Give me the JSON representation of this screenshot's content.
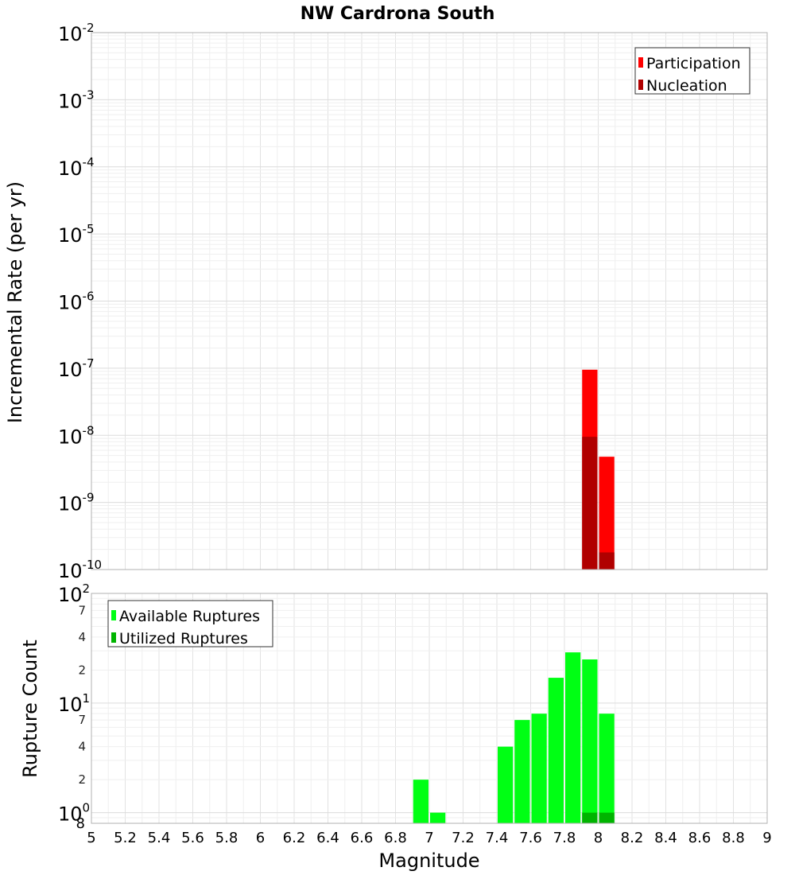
{
  "chart_data": [
    {
      "type": "bar",
      "title": "NW Cardrona South",
      "xlabel": "",
      "ylabel": "Incremental Rate (per yr)",
      "yscale": "log",
      "xlim": [
        5,
        9
      ],
      "ylim": [
        1e-10,
        0.01
      ],
      "y_ticks": [
        {
          "base": "10",
          "exp": "-2"
        },
        {
          "base": "10",
          "exp": "-3"
        },
        {
          "base": "10",
          "exp": "-4"
        },
        {
          "base": "10",
          "exp": "-5"
        },
        {
          "base": "10",
          "exp": "-6"
        },
        {
          "base": "10",
          "exp": "-7"
        },
        {
          "base": "10",
          "exp": "-8"
        },
        {
          "base": "10",
          "exp": "-9"
        },
        {
          "base": "10",
          "exp": "-10"
        }
      ],
      "bin_width": 0.1,
      "legend": {
        "placement": "top-right",
        "entries": [
          {
            "name": "Participation",
            "color": "#ff0000"
          },
          {
            "name": "Nucleation",
            "color": "#b00000"
          }
        ]
      },
      "series": [
        {
          "name": "Participation",
          "color": "#ff0000",
          "x": [
            7.95,
            8.05
          ],
          "values": [
            9.5e-08,
            4.8e-09
          ]
        },
        {
          "name": "Nucleation",
          "color": "#b00000",
          "x": [
            7.95,
            8.05
          ],
          "values": [
            9.5e-09,
            1.8e-10
          ]
        }
      ]
    },
    {
      "type": "bar",
      "title": "",
      "xlabel": "Magnitude",
      "ylabel": "Rupture Count",
      "yscale": "log",
      "xlim": [
        5,
        9
      ],
      "ylim": [
        0.8,
        100
      ],
      "x_ticks": [
        "5",
        "5.2",
        "5.4",
        "5.6",
        "5.8",
        "6",
        "6.2",
        "6.4",
        "6.6",
        "6.8",
        "7",
        "7.2",
        "7.4",
        "7.6",
        "7.8",
        "8",
        "8.2",
        "8.4",
        "8.6",
        "8.8",
        "9"
      ],
      "y_major_ticks": [
        {
          "base": "10",
          "exp": "2",
          "value": 100
        },
        {
          "base": "10",
          "exp": "1",
          "value": 10
        },
        {
          "base": "10",
          "exp": "0",
          "value": 1
        }
      ],
      "y_minor_ticks": [
        {
          "label": "7",
          "value": 70
        },
        {
          "label": "4",
          "value": 40
        },
        {
          "label": "2",
          "value": 20
        },
        {
          "label": "7",
          "value": 7
        },
        {
          "label": "4",
          "value": 4
        },
        {
          "label": "2",
          "value": 2
        },
        {
          "label": "8",
          "value": 0.8
        }
      ],
      "bin_width": 0.1,
      "legend": {
        "placement": "top-left",
        "entries": [
          {
            "name": "Available Ruptures",
            "color": "#00ff14"
          },
          {
            "name": "Utilized Ruptures",
            "color": "#00b400"
          }
        ]
      },
      "series": [
        {
          "name": "Available Ruptures",
          "color": "#00ff14",
          "x": [
            6.95,
            7.05,
            7.45,
            7.55,
            7.65,
            7.75,
            7.85,
            7.95,
            8.05
          ],
          "values": [
            2,
            1,
            4,
            7,
            8,
            17,
            29,
            25,
            8
          ]
        },
        {
          "name": "Utilized Ruptures",
          "color": "#00b400",
          "x": [
            7.95,
            8.05
          ],
          "values": [
            1,
            1
          ]
        }
      ]
    }
  ]
}
